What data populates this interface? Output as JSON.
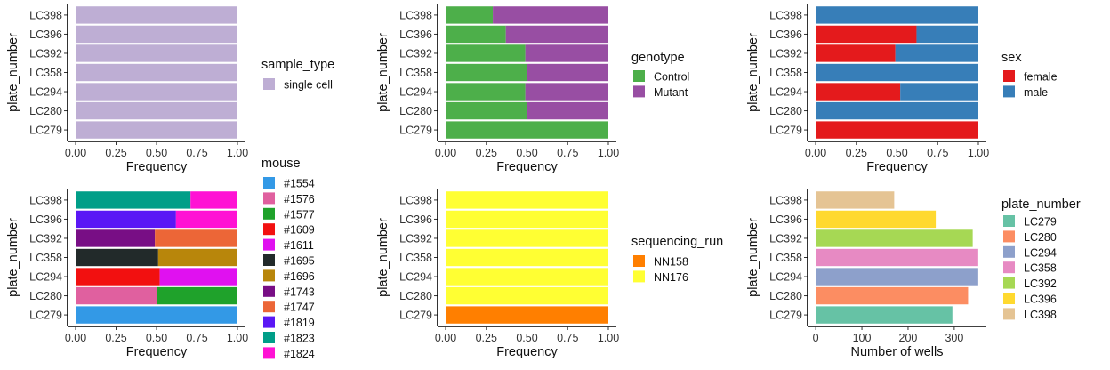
{
  "chart_data": [
    {
      "id": "sample-type",
      "type": "bar",
      "orientation": "horizontal",
      "stacked": true,
      "categories": [
        "LC279",
        "LC280",
        "LC294",
        "LC358",
        "LC392",
        "LC396",
        "LC398"
      ],
      "series": [
        {
          "name": "single cell",
          "color": "#BEAED4",
          "values": [
            1,
            1,
            1,
            1,
            1,
            1,
            1
          ]
        }
      ],
      "xlabel": "Frequency",
      "ylabel": "plate_number",
      "xlim": [
        0,
        1
      ],
      "xticks": [
        0,
        0.25,
        0.5,
        0.75,
        1
      ],
      "xtick_labels": [
        "0.00",
        "0.25",
        "0.50",
        "0.75",
        "1.00"
      ],
      "legend_title": "sample_type",
      "legend_position": "right",
      "grid": false
    },
    {
      "id": "genotype",
      "type": "bar",
      "orientation": "horizontal",
      "stacked": true,
      "categories": [
        "LC279",
        "LC280",
        "LC294",
        "LC358",
        "LC392",
        "LC396",
        "LC398"
      ],
      "series": [
        {
          "name": "Control",
          "color": "#4DAF4A",
          "values": [
            1.0,
            0.5,
            0.49,
            0.5,
            0.49,
            0.37,
            0.29
          ]
        },
        {
          "name": "Mutant",
          "color": "#984EA3",
          "values": [
            0.0,
            0.5,
            0.51,
            0.5,
            0.51,
            0.63,
            0.71
          ]
        }
      ],
      "xlabel": "Frequency",
      "ylabel": "plate_number",
      "xlim": [
        0,
        1
      ],
      "xticks": [
        0,
        0.25,
        0.5,
        0.75,
        1
      ],
      "xtick_labels": [
        "0.00",
        "0.25",
        "0.50",
        "0.75",
        "1.00"
      ],
      "legend_title": "genotype",
      "legend_position": "right",
      "grid": false
    },
    {
      "id": "sex",
      "type": "bar",
      "orientation": "horizontal",
      "stacked": true,
      "categories": [
        "LC279",
        "LC280",
        "LC294",
        "LC358",
        "LC392",
        "LC396",
        "LC398"
      ],
      "series": [
        {
          "name": "female",
          "color": "#E41A1C",
          "values": [
            1.0,
            0.0,
            0.52,
            0.0,
            0.49,
            0.62,
            0.0
          ]
        },
        {
          "name": "male",
          "color": "#377EB8",
          "values": [
            0.0,
            1.0,
            0.48,
            1.0,
            0.51,
            0.38,
            1.0
          ]
        }
      ],
      "xlabel": "Frequency",
      "ylabel": "plate_number",
      "xlim": [
        0,
        1
      ],
      "xticks": [
        0,
        0.25,
        0.5,
        0.75,
        1
      ],
      "xtick_labels": [
        "0.00",
        "0.25",
        "0.50",
        "0.75",
        "1.00"
      ],
      "legend_title": "sex",
      "legend_position": "right",
      "grid": false
    },
    {
      "id": "mouse",
      "type": "bar",
      "orientation": "horizontal",
      "stacked": true,
      "categories": [
        "LC279",
        "LC280",
        "LC294",
        "LC358",
        "LC392",
        "LC396",
        "LC398"
      ],
      "series": [
        {
          "name": "#1554",
          "color": "#3399E6",
          "values": [
            1.0,
            0,
            0,
            0,
            0,
            0,
            0
          ]
        },
        {
          "name": "#1576",
          "color": "#E0609F",
          "values": [
            0,
            0.5,
            0,
            0,
            0,
            0,
            0
          ]
        },
        {
          "name": "#1577",
          "color": "#1FA22B",
          "values": [
            0,
            0.5,
            0,
            0,
            0,
            0,
            0
          ]
        },
        {
          "name": "#1609",
          "color": "#F21010",
          "values": [
            0,
            0,
            0.52,
            0,
            0,
            0,
            0
          ]
        },
        {
          "name": "#1611",
          "color": "#E011F0",
          "values": [
            0,
            0,
            0.48,
            0,
            0,
            0,
            0
          ]
        },
        {
          "name": "#1695",
          "color": "#222A2A",
          "values": [
            0,
            0,
            0,
            0.51,
            0,
            0,
            0
          ]
        },
        {
          "name": "#1696",
          "color": "#B8860B",
          "values": [
            0,
            0,
            0,
            0.49,
            0,
            0,
            0
          ]
        },
        {
          "name": "#1743",
          "color": "#780E85",
          "values": [
            0,
            0,
            0,
            0,
            0.49,
            0,
            0
          ]
        },
        {
          "name": "#1747",
          "color": "#EC6637",
          "values": [
            0,
            0,
            0,
            0,
            0.51,
            0,
            0
          ]
        },
        {
          "name": "#1819",
          "color": "#5A17F5",
          "values": [
            0,
            0,
            0,
            0,
            0,
            0.62,
            0
          ]
        },
        {
          "name": "#1823",
          "color": "#009E88",
          "values": [
            0,
            0,
            0,
            0,
            0,
            0,
            0.71
          ]
        },
        {
          "name": "#1824",
          "color": "#FF12D4",
          "values": [
            0,
            0,
            0,
            0,
            0,
            0.38,
            0.29
          ]
        }
      ],
      "xlabel": "Frequency",
      "ylabel": "plate_number",
      "xlim": [
        0,
        1
      ],
      "xticks": [
        0,
        0.25,
        0.5,
        0.75,
        1
      ],
      "xtick_labels": [
        "0.00",
        "0.25",
        "0.50",
        "0.75",
        "1.00"
      ],
      "legend_title": "mouse",
      "legend_position": "right",
      "grid": false
    },
    {
      "id": "sequencing-run",
      "type": "bar",
      "orientation": "horizontal",
      "stacked": true,
      "categories": [
        "LC279",
        "LC280",
        "LC294",
        "LC358",
        "LC392",
        "LC396",
        "LC398"
      ],
      "series": [
        {
          "name": "NN158",
          "color": "#FF7F00",
          "values": [
            1,
            0,
            0,
            0,
            0,
            0,
            0
          ]
        },
        {
          "name": "NN176",
          "color": "#FFFF33",
          "values": [
            0,
            1,
            1,
            1,
            1,
            1,
            1
          ]
        }
      ],
      "xlabel": "Frequency",
      "ylabel": "plate_number",
      "xlim": [
        0,
        1
      ],
      "xticks": [
        0,
        0.25,
        0.5,
        0.75,
        1
      ],
      "xtick_labels": [
        "0.00",
        "0.25",
        "0.50",
        "0.75",
        "1.00"
      ],
      "legend_title": "sequencing_run",
      "legend_position": "right",
      "grid": false
    },
    {
      "id": "wells",
      "type": "bar",
      "orientation": "horizontal",
      "stacked": false,
      "categories": [
        "LC279",
        "LC280",
        "LC294",
        "LC358",
        "LC392",
        "LC396",
        "LC398"
      ],
      "colors": [
        "#66C2A5",
        "#FC8D62",
        "#8DA0CB",
        "#E78AC3",
        "#A6D854",
        "#FFD92F",
        "#E5C494"
      ],
      "values": [
        296,
        330,
        352,
        352,
        340,
        260,
        170
      ],
      "xlabel": "Number of wells",
      "ylabel": "plate_number",
      "xlim": [
        -17.6,
        369.6
      ],
      "xticks": [
        0,
        100,
        200,
        300
      ],
      "xtick_labels": [
        "0",
        "100",
        "200",
        "300"
      ],
      "legend_title": "plate_number",
      "legend_position": "right",
      "legend_entries": [
        "LC279",
        "LC280",
        "LC294",
        "LC358",
        "LC392",
        "LC396",
        "LC398"
      ],
      "grid": false
    }
  ]
}
